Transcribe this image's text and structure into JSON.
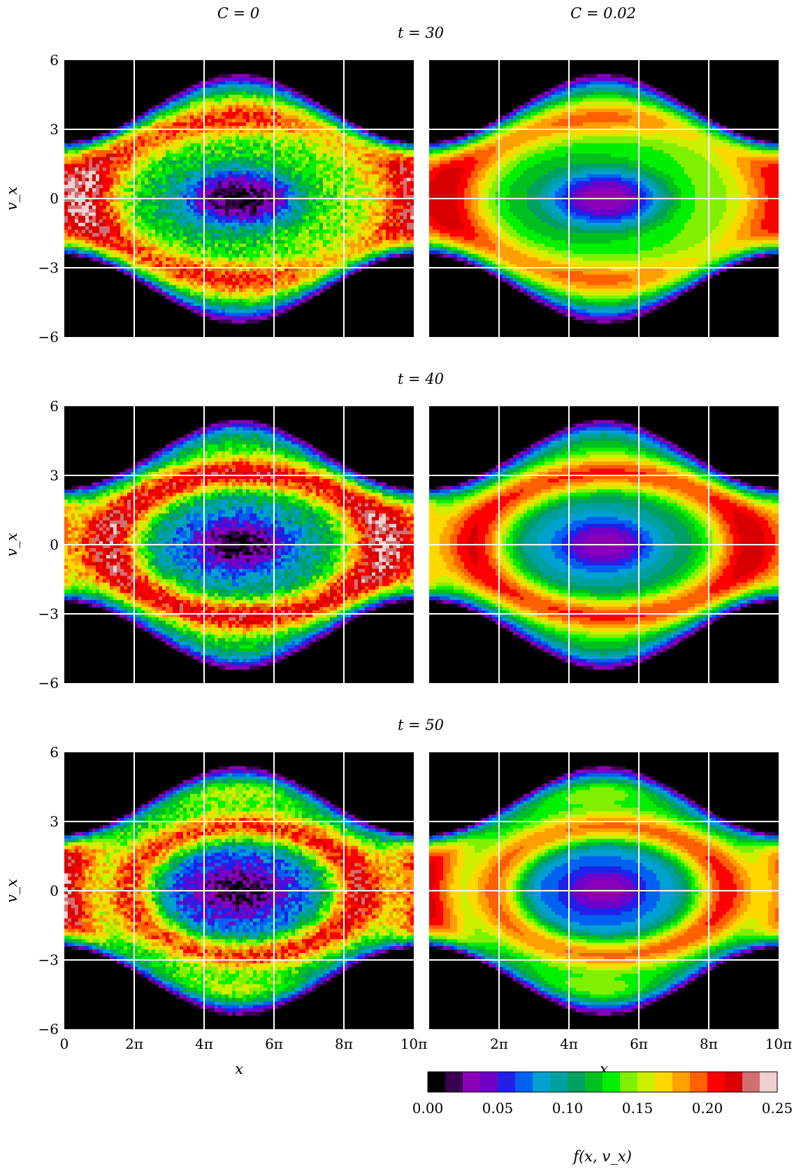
{
  "figure": {
    "column_titles": [
      "C = 0",
      "C = 0.02"
    ],
    "row_titles": [
      "t = 30",
      "t = 40",
      "t = 50"
    ]
  },
  "chart_data": {
    "type": "heatmap",
    "description_kind": "contour",
    "columns": [
      {
        "title": "C = 0",
        "collisionality": 0,
        "noisy": true
      },
      {
        "title": "C = 0.02",
        "collisionality": 0.02,
        "noisy": false
      }
    ],
    "rows": [
      {
        "title": "t = 30",
        "t": 30
      },
      {
        "title": "t = 40",
        "t": 40
      },
      {
        "title": "t = 50",
        "t": 50
      }
    ],
    "xlabel": "x",
    "ylabel": "v_x",
    "xlim": [
      0,
      31.4159
    ],
    "ylim": [
      -6,
      6
    ],
    "x_tick_values": [
      0,
      6.2832,
      12.5664,
      18.8496,
      25.1327,
      31.4159
    ],
    "x_tick_labels": [
      "0",
      "2π",
      "4π",
      "6π",
      "8π",
      "10π"
    ],
    "y_tick_values": [
      -6,
      -3,
      0,
      3,
      6
    ],
    "y_tick_labels": [
      "−6",
      "−3",
      "0",
      "3",
      "6"
    ],
    "grid": true,
    "colorbar": {
      "label": "f(x, v_x)",
      "range": [
        0,
        0.25
      ],
      "tick_values": [
        0,
        0.05,
        0.1,
        0.15,
        0.2,
        0.25
      ],
      "tick_labels": [
        "0.00",
        "0.05",
        "0.10",
        "0.15",
        "0.20",
        "0.25"
      ],
      "colors": [
        "#000000",
        "#3a0050",
        "#8a00b8",
        "#7000c8",
        "#2020e8",
        "#0060f0",
        "#00a0d0",
        "#00a0a0",
        "#00a060",
        "#00c020",
        "#00f000",
        "#80f000",
        "#ccf000",
        "#ffd800",
        "#ffa000",
        "#ff6000",
        "#ff0000",
        "#d80000",
        "#d07070",
        "#f0d0d0"
      ]
    }
  }
}
